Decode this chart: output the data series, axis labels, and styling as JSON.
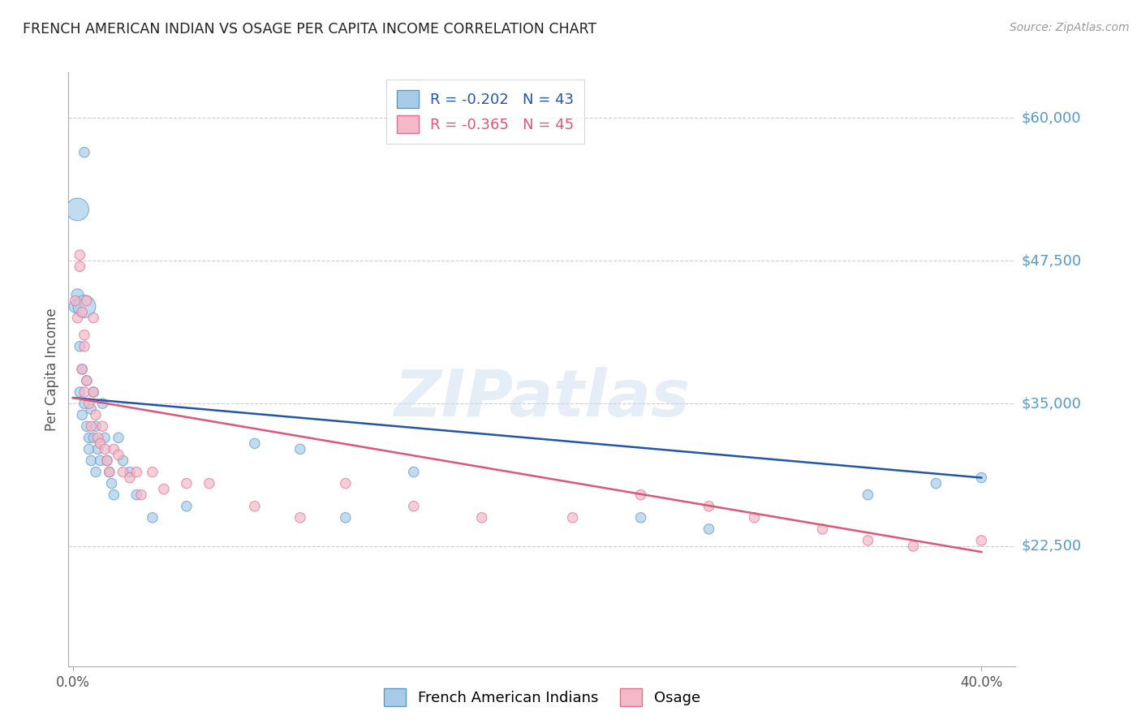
{
  "title": "FRENCH AMERICAN INDIAN VS OSAGE PER CAPITA INCOME CORRELATION CHART",
  "source": "Source: ZipAtlas.com",
  "ylabel": "Per Capita Income",
  "y_tick_labels": [
    "$22,500",
    "$35,000",
    "$47,500",
    "$60,000"
  ],
  "y_tick_values": [
    22500,
    35000,
    47500,
    60000
  ],
  "y_min": 12000,
  "y_max": 64000,
  "x_min": -0.002,
  "x_max": 0.415,
  "blue_R": "-0.202",
  "blue_N": "43",
  "pink_R": "-0.365",
  "pink_N": "45",
  "blue_color": "#a8cce8",
  "pink_color": "#f5b8c8",
  "blue_edge_color": "#5599cc",
  "pink_edge_color": "#e07090",
  "blue_line_color": "#2255aa",
  "pink_line_color": "#dd5577",
  "background_color": "#ffffff",
  "grid_color": "#cccccc",
  "label_color": "#5599cc",
  "watermark": "ZIPatlas",
  "blue_trend_x": [
    0.0,
    0.4
  ],
  "blue_trend_y": [
    35500,
    28500
  ],
  "pink_trend_x": [
    0.0,
    0.4
  ],
  "pink_trend_y": [
    35500,
    22000
  ],
  "blue_x": [
    0.001,
    0.002,
    0.003,
    0.003,
    0.004,
    0.004,
    0.005,
    0.005,
    0.006,
    0.006,
    0.007,
    0.007,
    0.008,
    0.008,
    0.009,
    0.009,
    0.01,
    0.01,
    0.011,
    0.012,
    0.013,
    0.014,
    0.015,
    0.016,
    0.017,
    0.018,
    0.02,
    0.022,
    0.025,
    0.028,
    0.035,
    0.05,
    0.08,
    0.1,
    0.12,
    0.15,
    0.25,
    0.35,
    0.38,
    0.4,
    0.28,
    0.005,
    0.002
  ],
  "blue_y": [
    43500,
    44500,
    36000,
    40000,
    38000,
    34000,
    43500,
    35000,
    37000,
    33000,
    32000,
    31000,
    34500,
    30000,
    36000,
    32000,
    33000,
    29000,
    31000,
    30000,
    35000,
    32000,
    30000,
    29000,
    28000,
    27000,
    32000,
    30000,
    29000,
    27000,
    25000,
    26000,
    31500,
    31000,
    25000,
    29000,
    25000,
    27000,
    28000,
    28500,
    24000,
    57000,
    52000
  ],
  "blue_size": [
    120,
    120,
    80,
    80,
    80,
    80,
    400,
    80,
    80,
    80,
    80,
    80,
    80,
    80,
    80,
    80,
    80,
    80,
    80,
    80,
    80,
    80,
    80,
    80,
    80,
    80,
    80,
    80,
    80,
    80,
    80,
    80,
    80,
    80,
    80,
    80,
    80,
    80,
    80,
    80,
    80,
    80,
    400
  ],
  "pink_x": [
    0.001,
    0.002,
    0.003,
    0.004,
    0.004,
    0.005,
    0.005,
    0.006,
    0.007,
    0.008,
    0.009,
    0.01,
    0.011,
    0.012,
    0.013,
    0.014,
    0.015,
    0.016,
    0.018,
    0.02,
    0.022,
    0.025,
    0.028,
    0.03,
    0.035,
    0.04,
    0.05,
    0.06,
    0.08,
    0.1,
    0.12,
    0.15,
    0.18,
    0.22,
    0.25,
    0.28,
    0.3,
    0.33,
    0.35,
    0.37,
    0.4,
    0.003,
    0.006,
    0.009,
    0.005
  ],
  "pink_y": [
    44000,
    42500,
    48000,
    43000,
    38000,
    41000,
    36000,
    37000,
    35000,
    33000,
    36000,
    34000,
    32000,
    31500,
    33000,
    31000,
    30000,
    29000,
    31000,
    30500,
    29000,
    28500,
    29000,
    27000,
    29000,
    27500,
    28000,
    28000,
    26000,
    25000,
    28000,
    26000,
    25000,
    25000,
    27000,
    26000,
    25000,
    24000,
    23000,
    22500,
    23000,
    47000,
    44000,
    42500,
    40000
  ],
  "pink_size": [
    80,
    80,
    80,
    80,
    80,
    80,
    80,
    80,
    80,
    80,
    80,
    80,
    80,
    80,
    80,
    80,
    80,
    80,
    80,
    80,
    80,
    80,
    80,
    80,
    80,
    80,
    80,
    80,
    80,
    80,
    80,
    80,
    80,
    80,
    80,
    80,
    80,
    80,
    80,
    80,
    80,
    80,
    80,
    80,
    80
  ]
}
